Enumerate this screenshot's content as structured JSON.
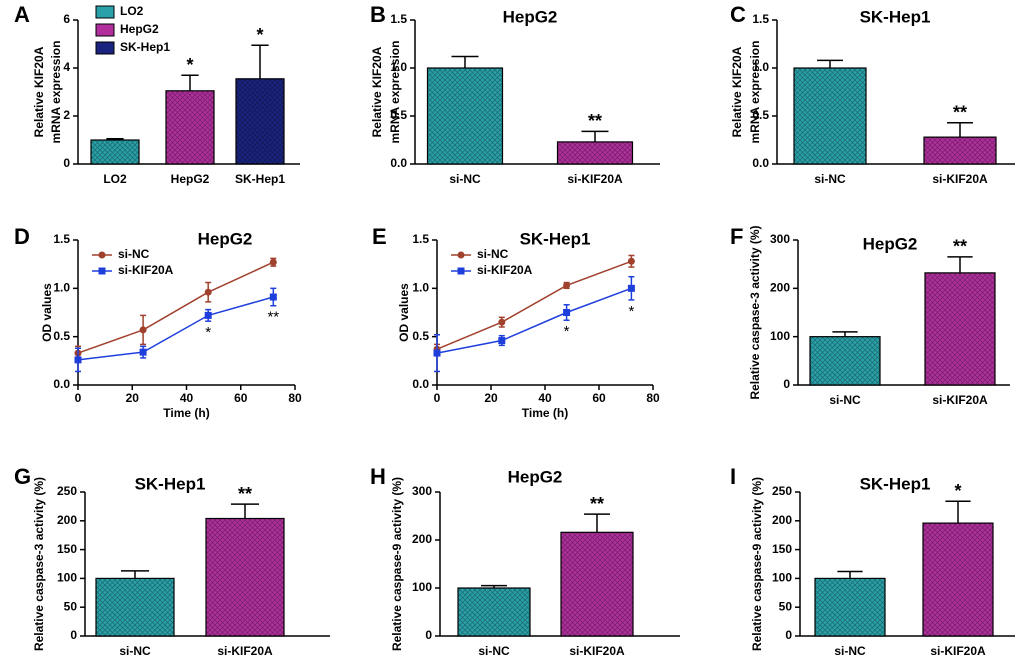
{
  "chart_data": [
    {
      "type": "bar",
      "panel": "A",
      "ylabel": [
        "Relative KIF20A",
        "mRNA expression"
      ],
      "categories": [
        "LO2",
        "HepG2",
        "SK-Hep1"
      ],
      "values": [
        1.0,
        3.05,
        3.55
      ],
      "errors": [
        0.05,
        0.65,
        1.4
      ],
      "colors": [
        "#2aa0a8",
        "#b02f9c",
        "#1a237e"
      ],
      "significance": [
        null,
        "*",
        "*"
      ],
      "ylim": [
        0,
        6
      ],
      "yticks": [
        0,
        2,
        4,
        6
      ],
      "legend": "top-left"
    },
    {
      "type": "bar",
      "panel": "B",
      "title": "HepG2",
      "ylabel": [
        "Relative KIF20A",
        "mRNA expression"
      ],
      "categories": [
        "si-NC",
        "si-KIF20A"
      ],
      "values": [
        1.0,
        0.23
      ],
      "errors": [
        0.12,
        0.11
      ],
      "colors": [
        "#2aa0a8",
        "#b02f9c"
      ],
      "significance": [
        null,
        "**"
      ],
      "ylim": [
        0,
        1.5
      ],
      "yticks": [
        {
          "value": 0,
          "label": "0.0"
        },
        0.5,
        {
          "value": 1,
          "label": "1.0"
        },
        1.5
      ]
    },
    {
      "type": "bar",
      "panel": "C",
      "title": "SK-Hep1",
      "ylabel": [
        "Relative KIF20A",
        "mRNA expression"
      ],
      "categories": [
        "si-NC",
        "si-KIF20A"
      ],
      "values": [
        1.0,
        0.28
      ],
      "errors": [
        0.08,
        0.15
      ],
      "colors": [
        "#2aa0a8",
        "#b02f9c"
      ],
      "significance": [
        null,
        "**"
      ],
      "ylim": [
        0,
        1.5
      ],
      "yticks": [
        {
          "value": 0,
          "label": "0.0"
        },
        0.5,
        {
          "value": 1,
          "label": "1.0"
        },
        1.5
      ]
    },
    {
      "type": "line",
      "panel": "D",
      "title": "HepG2",
      "xlabel": "Time (h)",
      "ylabel": [
        "OD values"
      ],
      "x": [
        0,
        24,
        48,
        72
      ],
      "series": [
        {
          "name": "si-NC",
          "color": "#a0412d",
          "marker": "circle",
          "values": [
            0.33,
            0.57,
            0.96,
            1.27
          ],
          "errors": [
            0.07,
            0.15,
            0.1,
            0.04
          ]
        },
        {
          "name": "si-KIF20A",
          "color": "#1f3fdd",
          "marker": "square",
          "values": [
            0.26,
            0.34,
            0.72,
            0.91
          ],
          "errors": [
            0.12,
            0.06,
            0.06,
            0.09
          ]
        }
      ],
      "significance": [
        null,
        null,
        "*",
        "**"
      ],
      "xlim": [
        0,
        80
      ],
      "xticks": [
        0,
        20,
        40,
        60,
        80
      ],
      "ylim": [
        0,
        1.5
      ],
      "yticks": [
        {
          "value": 0,
          "label": "0.0"
        },
        0.5,
        {
          "value": 1,
          "label": "1.0"
        },
        1.5
      ],
      "legend": "top-left"
    },
    {
      "type": "line",
      "panel": "E",
      "title": "SK-Hep1",
      "xlabel": "Time (h)",
      "ylabel": [
        "OD values"
      ],
      "x": [
        0,
        24,
        48,
        72
      ],
      "series": [
        {
          "name": "si-NC",
          "color": "#a0412d",
          "marker": "circle",
          "values": [
            0.37,
            0.65,
            1.03,
            1.28
          ],
          "errors": [
            0.05,
            0.05,
            0.03,
            0.06
          ]
        },
        {
          "name": "si-KIF20A",
          "color": "#1f3fdd",
          "marker": "square",
          "values": [
            0.33,
            0.46,
            0.75,
            1.0
          ],
          "errors": [
            0.19,
            0.05,
            0.08,
            0.12
          ]
        }
      ],
      "significance": [
        null,
        null,
        "*",
        "*"
      ],
      "xlim": [
        0,
        80
      ],
      "xticks": [
        0,
        20,
        40,
        60,
        80
      ],
      "ylim": [
        0,
        1.5
      ],
      "yticks": [
        {
          "value": 0,
          "label": "0.0"
        },
        0.5,
        {
          "value": 1,
          "label": "1.0"
        },
        1.5
      ],
      "legend": "top-left"
    },
    {
      "type": "bar",
      "panel": "F",
      "title": "HepG2",
      "ylabel": [
        "Relative caspase-3 activity (%)"
      ],
      "categories": [
        "si-NC",
        "si-KIF20A"
      ],
      "values": [
        100,
        232
      ],
      "errors": [
        10,
        33
      ],
      "colors": [
        "#2aa0a8",
        "#b02f9c"
      ],
      "significance": [
        null,
        "**"
      ],
      "ylim": [
        0,
        300
      ],
      "yticks": [
        0,
        100,
        200,
        300
      ]
    },
    {
      "type": "bar",
      "panel": "G",
      "title": "SK-Hep1",
      "ylabel": [
        "Relative caspase-3 activity (%)"
      ],
      "categories": [
        "si-NC",
        "si-KIF20A"
      ],
      "values": [
        100,
        204
      ],
      "errors": [
        13,
        25
      ],
      "colors": [
        "#2aa0a8",
        "#b02f9c"
      ],
      "significance": [
        null,
        "**"
      ],
      "ylim": [
        0,
        250
      ],
      "yticks": [
        0,
        50,
        100,
        150,
        200,
        250
      ]
    },
    {
      "type": "bar",
      "panel": "H",
      "title": "HepG2",
      "ylabel": [
        "Relative caspase-9 activity (%)"
      ],
      "categories": [
        "si-NC",
        "si-KIF20A"
      ],
      "values": [
        100,
        216
      ],
      "errors": [
        5,
        38
      ],
      "colors": [
        "#2aa0a8",
        "#b02f9c"
      ],
      "significance": [
        null,
        "**"
      ],
      "ylim": [
        0,
        300
      ],
      "yticks": [
        0,
        100,
        200,
        300
      ]
    },
    {
      "type": "bar",
      "panel": "I",
      "title": "SK-Hep1",
      "ylabel": [
        "Relative caspase-9 activity (%)"
      ],
      "categories": [
        "si-NC",
        "si-KIF20A"
      ],
      "values": [
        100,
        196
      ],
      "errors": [
        12,
        38
      ],
      "colors": [
        "#2aa0a8",
        "#b02f9c"
      ],
      "significance": [
        null,
        "*"
      ],
      "ylim": [
        0,
        250
      ],
      "yticks": [
        0,
        50,
        100,
        150,
        200,
        250
      ]
    }
  ]
}
